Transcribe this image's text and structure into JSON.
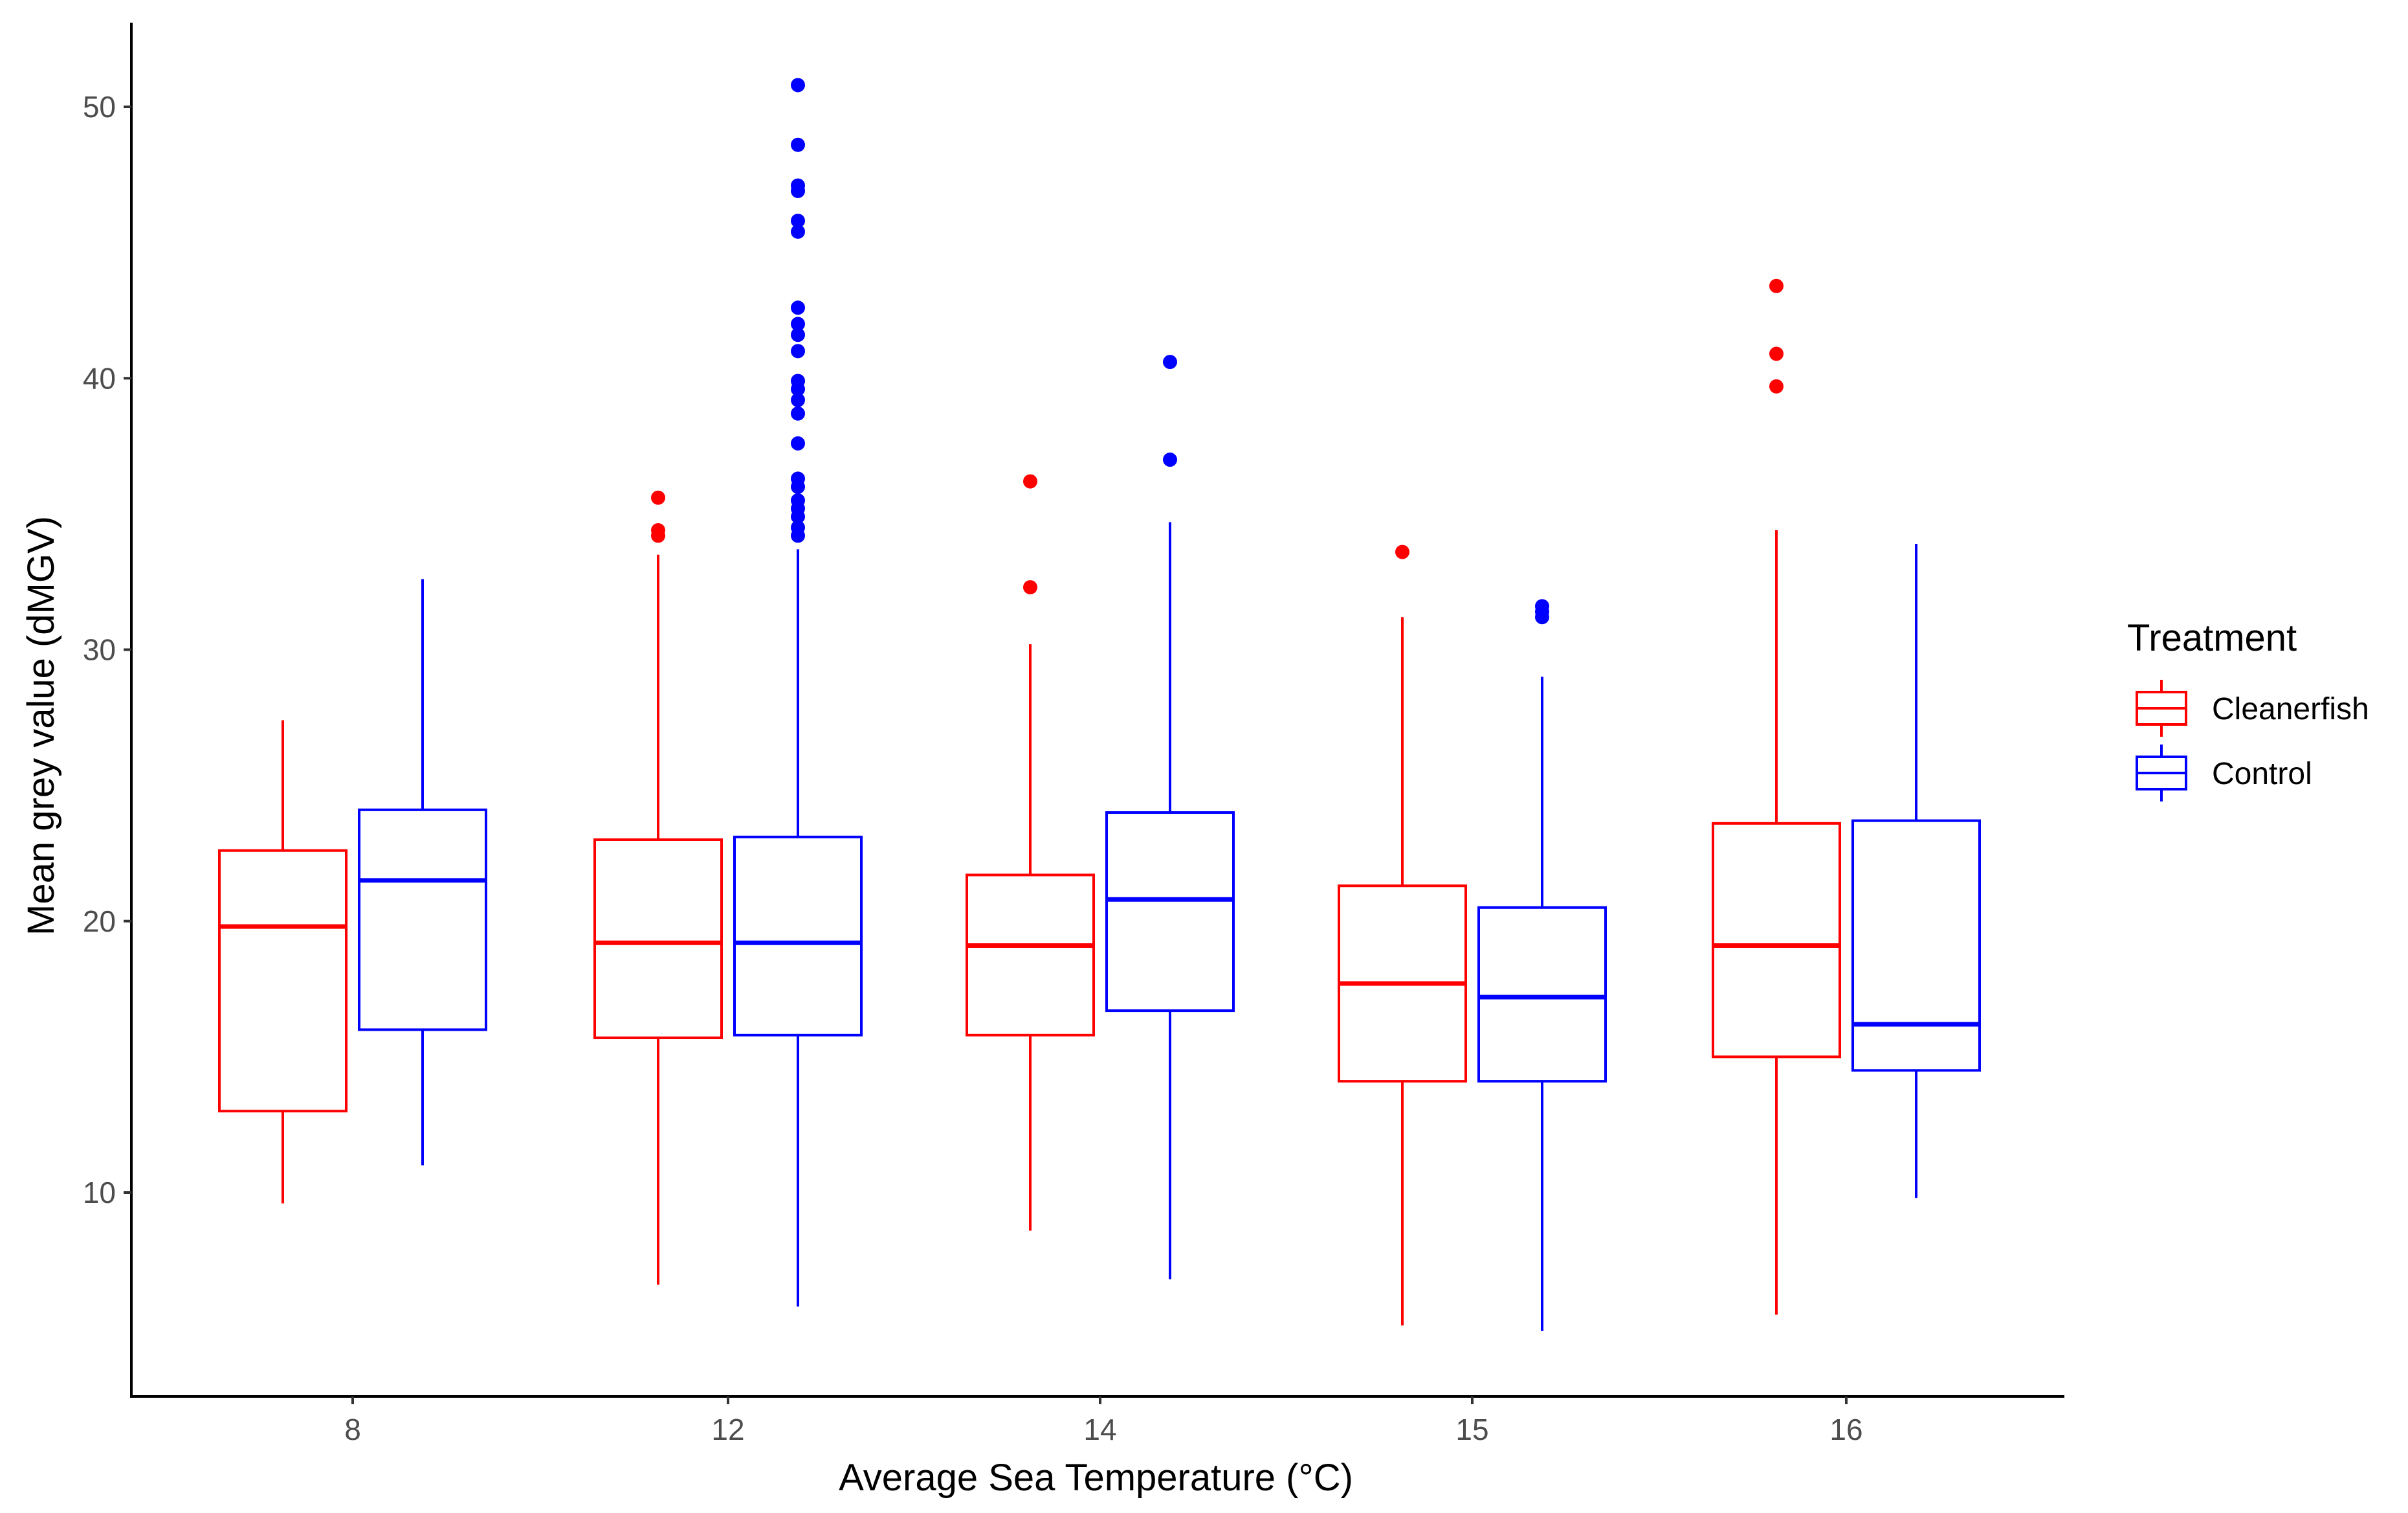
{
  "chart_data": {
    "type": "boxplot",
    "title": "",
    "xlabel": "Average Sea Temperature (°C)",
    "ylabel": "Mean grey value (dMGV)",
    "ylim": [
      2.5,
      53
    ],
    "yticks": [
      10,
      20,
      30,
      40,
      50
    ],
    "grid": false,
    "legend_position": "right",
    "legend_title": "Treatment",
    "categories": [
      "8",
      "12",
      "14",
      "15",
      "16"
    ],
    "series": [
      {
        "name": "Cleanerfish",
        "color": "#ff0000",
        "boxes": [
          {
            "category": "8",
            "whisker_low": 9.6,
            "q1": 13.0,
            "median": 19.8,
            "q3": 22.6,
            "whisker_high": 27.4,
            "outliers": []
          },
          {
            "category": "12",
            "whisker_low": 6.6,
            "q1": 15.7,
            "median": 19.2,
            "q3": 23.0,
            "whisker_high": 33.5,
            "outliers": [
              34.2,
              34.4,
              35.6
            ]
          },
          {
            "category": "14",
            "whisker_low": 8.6,
            "q1": 15.8,
            "median": 19.1,
            "q3": 21.7,
            "whisker_high": 30.2,
            "outliers": [
              32.3,
              36.2
            ]
          },
          {
            "category": "15",
            "whisker_low": 5.1,
            "q1": 14.1,
            "median": 17.7,
            "q3": 21.3,
            "whisker_high": 31.2,
            "outliers": [
              33.6
            ]
          },
          {
            "category": "16",
            "whisker_low": 5.5,
            "q1": 15.0,
            "median": 19.1,
            "q3": 23.6,
            "whisker_high": 34.4,
            "outliers": [
              39.7,
              40.9,
              43.4
            ]
          }
        ]
      },
      {
        "name": "Control",
        "color": "#0000ff",
        "boxes": [
          {
            "category": "8",
            "whisker_low": 11.0,
            "q1": 16.0,
            "median": 21.5,
            "q3": 24.1,
            "whisker_high": 32.6,
            "outliers": []
          },
          {
            "category": "12",
            "whisker_low": 5.8,
            "q1": 15.8,
            "median": 19.2,
            "q3": 23.1,
            "whisker_high": 33.7,
            "outliers": [
              34.2,
              34.5,
              34.9,
              35.2,
              35.5,
              36.0,
              36.3,
              37.6,
              38.7,
              39.2,
              39.6,
              39.9,
              41.0,
              41.6,
              42.0,
              42.6,
              45.4,
              45.8,
              46.9,
              47.1,
              48.6,
              50.8
            ]
          },
          {
            "category": "14",
            "whisker_low": 6.8,
            "q1": 16.7,
            "median": 20.8,
            "q3": 24.0,
            "whisker_high": 34.7,
            "outliers": [
              37.0,
              40.6
            ]
          },
          {
            "category": "15",
            "whisker_low": 4.9,
            "q1": 14.1,
            "median": 17.2,
            "q3": 20.5,
            "whisker_high": 29.0,
            "outliers": [
              31.2,
              31.4,
              31.6
            ]
          },
          {
            "category": "16",
            "whisker_low": 9.8,
            "q1": 14.5,
            "median": 16.2,
            "q3": 23.7,
            "whisker_high": 33.9,
            "outliers": []
          }
        ]
      }
    ]
  }
}
